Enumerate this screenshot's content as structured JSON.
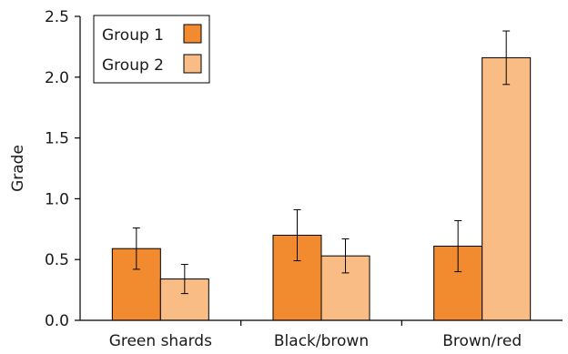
{
  "chart_data": {
    "type": "bar",
    "title": "",
    "xlabel": "",
    "ylabel": "Grade",
    "ylim": [
      0,
      2.5
    ],
    "yticks": [
      "0.0",
      "0.5",
      "1.0",
      "1.5",
      "2.0",
      "2.5"
    ],
    "categories": [
      "Green shards",
      "Black/brown",
      "Brown/red"
    ],
    "series": [
      {
        "name": "Group 1",
        "color": "#f28b2f",
        "values": [
          0.59,
          0.7,
          0.61
        ],
        "error": [
          0.17,
          0.21,
          0.21
        ]
      },
      {
        "name": "Group 2",
        "color": "#f9bc84",
        "values": [
          0.34,
          0.53,
          2.16
        ],
        "error": [
          0.12,
          0.14,
          0.22
        ]
      }
    ],
    "grid": false,
    "legend": "top-left",
    "error_bars": true
  }
}
